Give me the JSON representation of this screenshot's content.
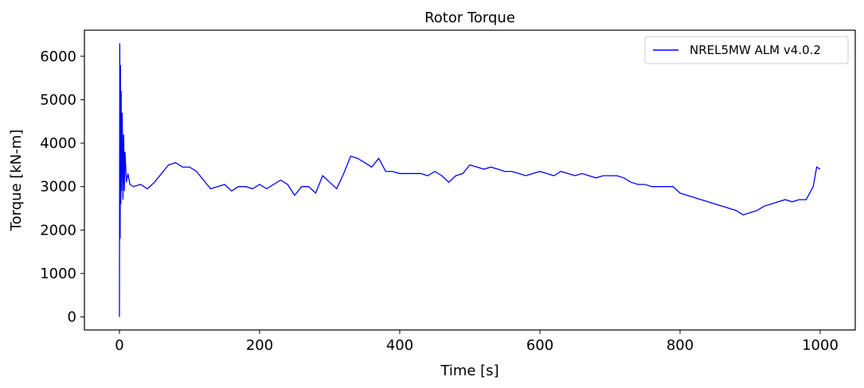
{
  "chart_data": {
    "type": "line",
    "title": "Rotor Torque",
    "xlabel": "Time [s]",
    "ylabel": "Torque [kN-m]",
    "xlim": [
      -50,
      1050
    ],
    "ylim": [
      -300,
      6600
    ],
    "xticks": [
      0,
      200,
      400,
      600,
      800,
      1000
    ],
    "yticks": [
      0,
      1000,
      2000,
      3000,
      4000,
      5000,
      6000
    ],
    "grid": false,
    "legend_position": "top-right",
    "series": [
      {
        "name": "NREL5MW ALM v4.0.2",
        "color": "#0000ff",
        "x": [
          0,
          0.5,
          1,
          1.5,
          2,
          2.5,
          3,
          4,
          5,
          6,
          7,
          8,
          10,
          12,
          15,
          20,
          30,
          40,
          50,
          60,
          70,
          80,
          90,
          100,
          110,
          120,
          130,
          140,
          150,
          160,
          170,
          180,
          190,
          200,
          210,
          220,
          230,
          240,
          250,
          260,
          270,
          280,
          290,
          300,
          310,
          320,
          330,
          340,
          350,
          360,
          370,
          380,
          390,
          400,
          410,
          420,
          430,
          440,
          450,
          460,
          470,
          480,
          490,
          500,
          510,
          520,
          530,
          540,
          550,
          560,
          570,
          580,
          590,
          600,
          610,
          620,
          630,
          640,
          650,
          660,
          670,
          680,
          690,
          700,
          710,
          720,
          730,
          740,
          750,
          760,
          770,
          780,
          790,
          800,
          810,
          820,
          830,
          840,
          850,
          860,
          870,
          880,
          890,
          900,
          910,
          920,
          930,
          940,
          950,
          960,
          970,
          980,
          990,
          995,
          1000
        ],
        "y": [
          0,
          6300,
          1800,
          5800,
          2600,
          5200,
          2900,
          4700,
          2700,
          4200,
          2900,
          3800,
          3100,
          3300,
          3050,
          3000,
          3050,
          2950,
          3100,
          3300,
          3500,
          3550,
          3450,
          3450,
          3350,
          3150,
          2950,
          3000,
          3050,
          2900,
          3000,
          3000,
          2950,
          3050,
          2950,
          3050,
          3150,
          3050,
          2800,
          3000,
          3000,
          2850,
          3250,
          3100,
          2950,
          3300,
          3700,
          3650,
          3550,
          3450,
          3650,
          3350,
          3350,
          3300,
          3300,
          3300,
          3300,
          3250,
          3350,
          3250,
          3100,
          3250,
          3300,
          3500,
          3450,
          3400,
          3450,
          3400,
          3350,
          3350,
          3300,
          3250,
          3300,
          3350,
          3300,
          3250,
          3350,
          3300,
          3250,
          3300,
          3250,
          3200,
          3250,
          3250,
          3250,
          3200,
          3100,
          3050,
          3050,
          3000,
          3000,
          3000,
          3000,
          2850,
          2800,
          2750,
          2700,
          2650,
          2600,
          2550,
          2500,
          2450,
          2350,
          2400,
          2450,
          2550,
          2600,
          2650,
          2700,
          2650,
          2700,
          2700,
          3000,
          3450,
          3400
        ]
      }
    ]
  }
}
